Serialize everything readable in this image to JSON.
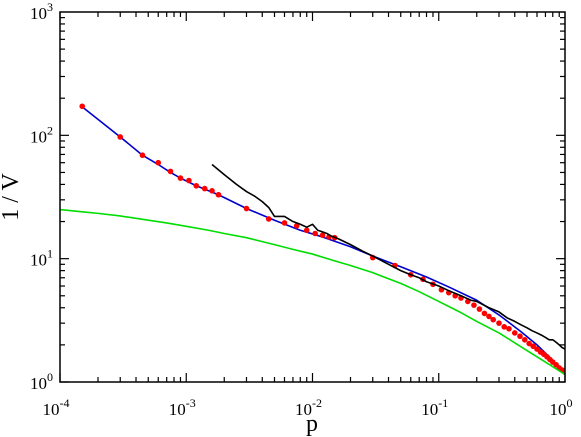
{
  "chart_data": {
    "type": "line",
    "title": "",
    "xlabel": "p",
    "ylabel": "1 / V",
    "xscale": "log",
    "yscale": "log",
    "xlim": [
      0.0001,
      1
    ],
    "ylim": [
      1,
      1000
    ],
    "grid": false,
    "legend": "none",
    "x_ticks": [
      {
        "base": "10",
        "exp": "-4",
        "value": 0.0001
      },
      {
        "base": "10",
        "exp": "-3",
        "value": 0.001
      },
      {
        "base": "10",
        "exp": "-2",
        "value": 0.01
      },
      {
        "base": "10",
        "exp": "-1",
        "value": 0.1
      },
      {
        "base": "10",
        "exp": "0",
        "value": 1
      }
    ],
    "y_ticks": [
      {
        "base": "10",
        "exp": "0",
        "value": 1
      },
      {
        "base": "10",
        "exp": "1",
        "value": 10
      },
      {
        "base": "10",
        "exp": "2",
        "value": 100
      },
      {
        "base": "10",
        "exp": "3",
        "value": 1000
      }
    ],
    "series": [
      {
        "kind": "line",
        "color": "#0000cc",
        "x": [
          0.00015,
          0.0003,
          0.00045,
          0.0006,
          0.00075,
          0.0009,
          0.0012,
          0.0018,
          0.003,
          0.005,
          0.008,
          0.012,
          0.02,
          0.03,
          0.05,
          0.08,
          0.12,
          0.2,
          0.3,
          0.45,
          0.6,
          0.8,
          1.0
        ],
        "y": [
          170,
          97,
          69,
          58,
          50,
          45,
          39,
          33,
          25.5,
          20.5,
          17,
          15,
          12.5,
          10.5,
          8.6,
          7.1,
          5.9,
          4.6,
          3.5,
          2.55,
          2.0,
          1.5,
          1.2
        ]
      },
      {
        "kind": "markers",
        "color": "#ff0000",
        "x": [
          0.00015,
          0.0003,
          0.00045,
          0.0006,
          0.00075,
          0.0009,
          0.00105,
          0.0012,
          0.0014,
          0.0016,
          0.0018,
          0.003,
          0.0045,
          0.006,
          0.0075,
          0.009,
          0.0105,
          0.012,
          0.0135,
          0.015,
          0.03,
          0.045,
          0.06,
          0.075,
          0.09,
          0.105,
          0.12,
          0.135,
          0.15,
          0.17,
          0.19,
          0.21,
          0.23,
          0.25,
          0.27,
          0.3,
          0.33,
          0.36,
          0.4,
          0.44,
          0.48,
          0.52,
          0.56,
          0.6,
          0.64,
          0.68,
          0.72,
          0.76,
          0.8,
          0.85,
          0.9,
          0.95,
          1.0
        ],
        "y": [
          172,
          97,
          69,
          60,
          51,
          45,
          43,
          39,
          37,
          35.5,
          33,
          25.5,
          21,
          19.5,
          18.5,
          17,
          16,
          15.5,
          15,
          14.8,
          10.2,
          8.8,
          7.4,
          6.8,
          6.2,
          5.6,
          5.3,
          5.0,
          4.8,
          4.5,
          4.2,
          3.9,
          3.6,
          3.4,
          3.2,
          3.0,
          2.8,
          2.7,
          2.5,
          2.35,
          2.2,
          2.05,
          1.95,
          1.85,
          1.75,
          1.68,
          1.6,
          1.52,
          1.45,
          1.38,
          1.3,
          1.25,
          1.2
        ]
      },
      {
        "kind": "line",
        "color": "#000000",
        "x": [
          0.0016,
          0.002,
          0.0025,
          0.003,
          0.0035,
          0.004,
          0.0045,
          0.005,
          0.006,
          0.007,
          0.008,
          0.009,
          0.01,
          0.011,
          0.012,
          0.013,
          0.014,
          0.016,
          0.02,
          0.025,
          0.03,
          0.04,
          0.05,
          0.06,
          0.07,
          0.08,
          0.1,
          0.12,
          0.15,
          0.18,
          0.2,
          0.25,
          0.3,
          0.35,
          0.4,
          0.45,
          0.5,
          0.55,
          0.6,
          0.65,
          0.7,
          0.75,
          0.8,
          0.85,
          0.9,
          0.95,
          1.0
        ],
        "y": [
          58,
          48,
          40,
          35,
          32,
          29,
          26,
          22,
          22,
          20,
          19,
          18,
          19,
          17,
          16.5,
          16,
          15.3,
          14.5,
          13,
          11.5,
          10.5,
          9.0,
          8.0,
          7.4,
          7.0,
          6.5,
          6.0,
          5.5,
          5.0,
          4.6,
          4.5,
          4.0,
          3.7,
          3.3,
          3.1,
          2.9,
          2.75,
          2.6,
          2.5,
          2.4,
          2.3,
          2.2,
          2.2,
          2.1,
          2.0,
          1.9,
          1.85
        ]
      },
      {
        "kind": "line",
        "color": "#00dd00",
        "x": [
          0.0001,
          0.00015,
          0.0002,
          0.0003,
          0.0005,
          0.0007,
          0.001,
          0.0015,
          0.002,
          0.003,
          0.005,
          0.007,
          0.01,
          0.015,
          0.02,
          0.03,
          0.05,
          0.07,
          0.1,
          0.15,
          0.2,
          0.3,
          0.5,
          0.7,
          1.0
        ],
        "y": [
          25,
          24,
          23.3,
          22.2,
          20.5,
          19.5,
          18.3,
          17,
          16,
          14.8,
          13,
          11.9,
          10.9,
          9.6,
          8.8,
          7.7,
          6.3,
          5.4,
          4.5,
          3.65,
          3.1,
          2.5,
          1.8,
          1.45,
          1.15
        ]
      }
    ]
  }
}
